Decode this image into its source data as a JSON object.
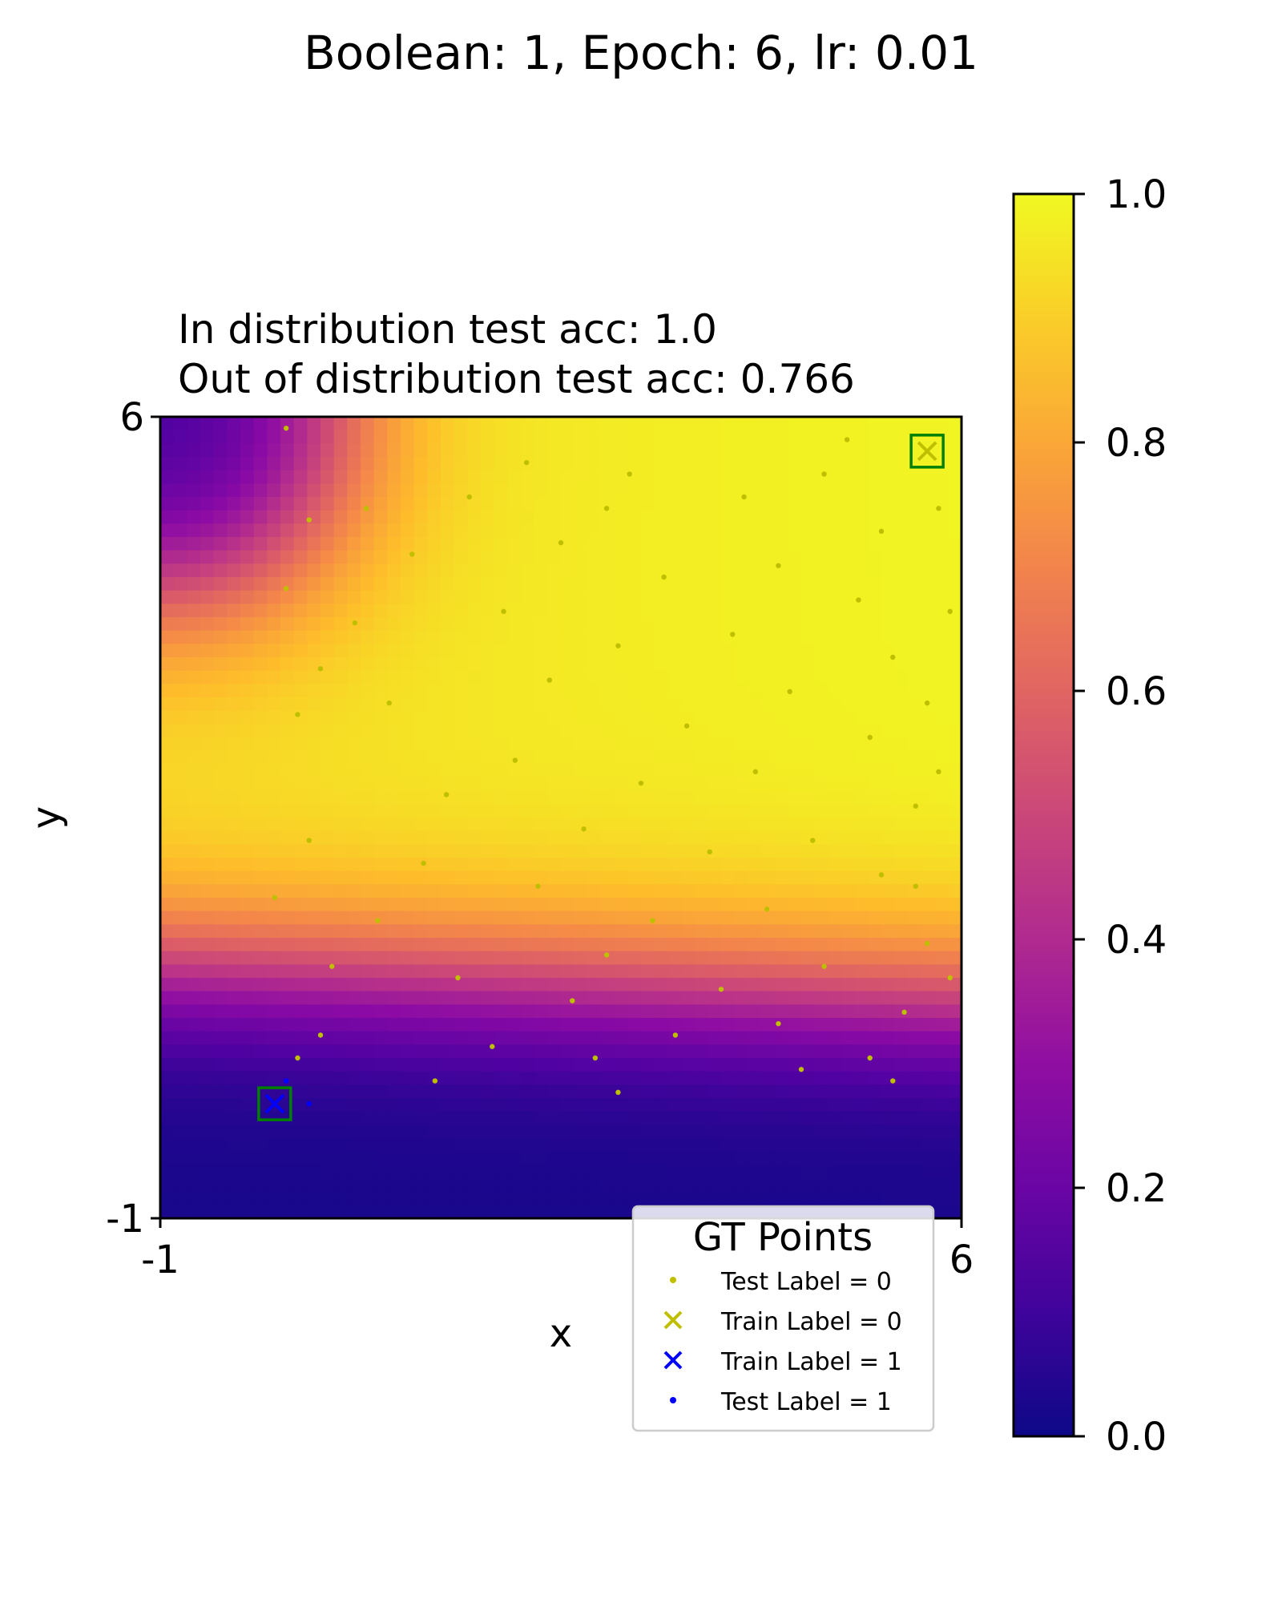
{
  "figure": {
    "suptitle": "Boolean: 1, Epoch: 6, lr: 0.01"
  },
  "chart_data": {
    "type": "heatmap",
    "title_lines": [
      "In distribution test acc: 1.0",
      "Out of distribution test acc: 0.766"
    ],
    "xlabel": "x",
    "ylabel": "y",
    "xlim": [
      -1,
      6
    ],
    "ylim": [
      -1,
      6
    ],
    "xticks": [
      {
        "value": -1,
        "label": "-1"
      },
      {
        "value": 6,
        "label": "6"
      }
    ],
    "yticks": [
      {
        "value": -1,
        "label": "-1"
      },
      {
        "value": 6,
        "label": "6"
      }
    ],
    "colormap": "plasma",
    "colorbar": {
      "range": [
        0,
        1
      ],
      "ticks": [
        {
          "value": 0.0,
          "label": "0.0"
        },
        {
          "value": 0.2,
          "label": "0.2"
        },
        {
          "value": 0.4,
          "label": "0.4"
        },
        {
          "value": 0.6,
          "label": "0.6"
        },
        {
          "value": 0.8,
          "label": "0.8"
        },
        {
          "value": 1.0,
          "label": "1.0"
        }
      ]
    },
    "heatmap_grid_resolution": 60,
    "train_points": [
      {
        "x": 0.0,
        "y": 0.0,
        "label": 1,
        "highlighted": true
      },
      {
        "x": 5.7,
        "y": 5.7,
        "label": 0,
        "highlighted": true
      }
    ],
    "test_points_label_1": [
      {
        "x": 0.0,
        "y": 0.0
      },
      {
        "x": 0.3,
        "y": 0.0
      },
      {
        "x": 0.1,
        "y": 0.2
      }
    ],
    "test_points_label_0": [
      {
        "x": 0.1,
        "y": 5.9
      },
      {
        "x": 0.3,
        "y": 5.1
      },
      {
        "x": 0.1,
        "y": 4.5
      },
      {
        "x": 0.4,
        "y": 3.8
      },
      {
        "x": 0.2,
        "y": 3.4
      },
      {
        "x": 0.3,
        "y": 2.3
      },
      {
        "x": 0.0,
        "y": 1.8
      },
      {
        "x": 0.5,
        "y": 1.2
      },
      {
        "x": 0.4,
        "y": 0.6
      },
      {
        "x": 0.2,
        "y": 0.4
      },
      {
        "x": 0.8,
        "y": 5.2
      },
      {
        "x": 1.2,
        "y": 4.8
      },
      {
        "x": 0.7,
        "y": 4.2
      },
      {
        "x": 1.0,
        "y": 3.5
      },
      {
        "x": 1.5,
        "y": 2.7
      },
      {
        "x": 1.3,
        "y": 2.1
      },
      {
        "x": 0.9,
        "y": 1.6
      },
      {
        "x": 1.6,
        "y": 1.1
      },
      {
        "x": 1.9,
        "y": 0.5
      },
      {
        "x": 1.4,
        "y": 0.2
      },
      {
        "x": 2.2,
        "y": 5.6
      },
      {
        "x": 2.5,
        "y": 4.9
      },
      {
        "x": 2.0,
        "y": 4.3
      },
      {
        "x": 2.4,
        "y": 3.7
      },
      {
        "x": 2.1,
        "y": 3.0
      },
      {
        "x": 2.7,
        "y": 2.4
      },
      {
        "x": 2.3,
        "y": 1.9
      },
      {
        "x": 2.9,
        "y": 1.3
      },
      {
        "x": 2.6,
        "y": 0.9
      },
      {
        "x": 2.8,
        "y": 0.4
      },
      {
        "x": 3.1,
        "y": 5.5
      },
      {
        "x": 3.4,
        "y": 4.6
      },
      {
        "x": 3.0,
        "y": 4.0
      },
      {
        "x": 3.6,
        "y": 3.3
      },
      {
        "x": 3.2,
        "y": 2.8
      },
      {
        "x": 3.8,
        "y": 2.2
      },
      {
        "x": 3.3,
        "y": 1.6
      },
      {
        "x": 3.9,
        "y": 1.0
      },
      {
        "x": 3.5,
        "y": 0.6
      },
      {
        "x": 3.0,
        "y": 0.1
      },
      {
        "x": 4.1,
        "y": 5.3
      },
      {
        "x": 4.4,
        "y": 4.7
      },
      {
        "x": 4.0,
        "y": 4.1
      },
      {
        "x": 4.5,
        "y": 3.6
      },
      {
        "x": 4.2,
        "y": 2.9
      },
      {
        "x": 4.7,
        "y": 2.3
      },
      {
        "x": 4.3,
        "y": 1.7
      },
      {
        "x": 4.8,
        "y": 1.2
      },
      {
        "x": 4.4,
        "y": 0.7
      },
      {
        "x": 4.6,
        "y": 0.3
      },
      {
        "x": 5.0,
        "y": 5.8
      },
      {
        "x": 5.3,
        "y": 5.0
      },
      {
        "x": 5.1,
        "y": 4.4
      },
      {
        "x": 5.4,
        "y": 3.9
      },
      {
        "x": 5.2,
        "y": 3.2
      },
      {
        "x": 5.6,
        "y": 2.6
      },
      {
        "x": 5.3,
        "y": 2.0
      },
      {
        "x": 5.7,
        "y": 1.4
      },
      {
        "x": 5.5,
        "y": 0.8
      },
      {
        "x": 5.2,
        "y": 0.4
      },
      {
        "x": 5.8,
        "y": 5.2
      },
      {
        "x": 5.9,
        "y": 4.3
      },
      {
        "x": 5.7,
        "y": 3.5
      },
      {
        "x": 5.8,
        "y": 2.9
      },
      {
        "x": 5.6,
        "y": 1.9
      },
      {
        "x": 5.9,
        "y": 1.1
      },
      {
        "x": 5.4,
        "y": 0.2
      },
      {
        "x": 1.7,
        "y": 5.3
      },
      {
        "x": 2.9,
        "y": 5.2
      },
      {
        "x": 4.8,
        "y": 5.5
      }
    ],
    "legend": {
      "title": "GT Points",
      "placement": "lower-right",
      "entries": [
        {
          "label": "Test Label = 0",
          "marker": "dot",
          "color": "#bfbf00"
        },
        {
          "label": "Train Label = 0",
          "marker": "x",
          "color": "#bfbf00"
        },
        {
          "label": "Train Label = 1",
          "marker": "x",
          "color": "#0000ff"
        },
        {
          "label": "Test Label = 1",
          "marker": "dot",
          "color": "#0000ff"
        }
      ]
    },
    "colors": {
      "label0": "#bfbf00",
      "label1": "#0000ff",
      "highlight_box": "#008000"
    }
  }
}
